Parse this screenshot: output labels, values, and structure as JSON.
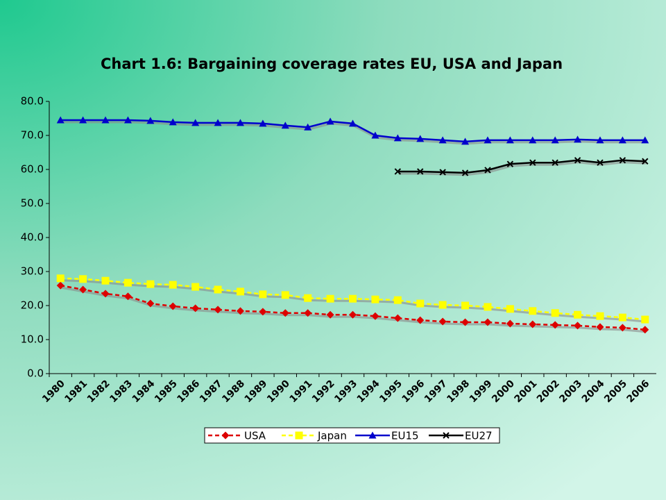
{
  "chart_data": {
    "type": "line",
    "title": "Chart 1.6: Bargaining coverage rates EU, USA and Japan",
    "categories": [
      "1980",
      "1981",
      "1982",
      "1983",
      "1984",
      "1985",
      "1986",
      "1987",
      "1988",
      "1989",
      "1990",
      "1991",
      "1992",
      "1993",
      "1994",
      "1995",
      "1996",
      "1997",
      "1998",
      "1999",
      "2000",
      "2001",
      "2002",
      "2003",
      "2004",
      "2005",
      "2006"
    ],
    "series": [
      {
        "name": "USA",
        "color": "#dd0000",
        "dash": true,
        "marker": "diamond",
        "values": [
          25.9,
          24.7,
          23.5,
          22.7,
          20.6,
          19.8,
          19.2,
          18.8,
          18.4,
          18.2,
          17.8,
          17.8,
          17.3,
          17.3,
          16.9,
          16.3,
          15.7,
          15.3,
          15.1,
          15.1,
          14.7,
          14.5,
          14.3,
          14.1,
          13.7,
          13.5,
          12.9
        ]
      },
      {
        "name": "Japan",
        "color": "#ffff00",
        "dash": true,
        "marker": "square",
        "values": [
          28.0,
          27.8,
          27.3,
          26.7,
          26.3,
          26.1,
          25.5,
          24.7,
          24.1,
          23.3,
          23.1,
          22.2,
          22.0,
          22.0,
          21.8,
          21.6,
          20.6,
          20.2,
          20.0,
          19.6,
          19.0,
          18.4,
          17.8,
          17.3,
          16.9,
          16.5,
          15.9
        ]
      },
      {
        "name": "EU15",
        "color": "#0000cc",
        "dash": false,
        "marker": "triangle",
        "values": [
          74.5,
          74.5,
          74.5,
          74.5,
          74.3,
          73.9,
          73.7,
          73.7,
          73.7,
          73.5,
          72.9,
          72.4,
          74.1,
          73.5,
          70.0,
          69.2,
          69.0,
          68.6,
          68.2,
          68.6,
          68.6,
          68.6,
          68.6,
          68.8,
          68.6,
          68.6,
          68.6
        ]
      },
      {
        "name": "EU27",
        "color": "#000000",
        "dash": false,
        "marker": "x",
        "values": [
          null,
          null,
          null,
          null,
          null,
          null,
          null,
          null,
          null,
          null,
          null,
          null,
          null,
          null,
          null,
          59.4,
          59.4,
          59.2,
          59.0,
          59.8,
          61.6,
          62.0,
          62.0,
          62.7,
          62.0,
          62.7,
          62.4
        ]
      }
    ],
    "ylim": [
      0,
      80
    ],
    "yticks": [
      {
        "value": 0,
        "label": "0.0"
      },
      {
        "value": 10,
        "label": "10.0"
      },
      {
        "value": 20,
        "label": "20.0"
      },
      {
        "value": 30,
        "label": "30.0"
      },
      {
        "value": 40,
        "label": "40.0"
      },
      {
        "value": 50,
        "label": "50.0"
      },
      {
        "value": 60,
        "label": "60.0"
      },
      {
        "value": 70,
        "label": "70.0"
      },
      {
        "value": 80,
        "label": "80.0"
      }
    ],
    "grid": false,
    "legend": "bottom"
  }
}
